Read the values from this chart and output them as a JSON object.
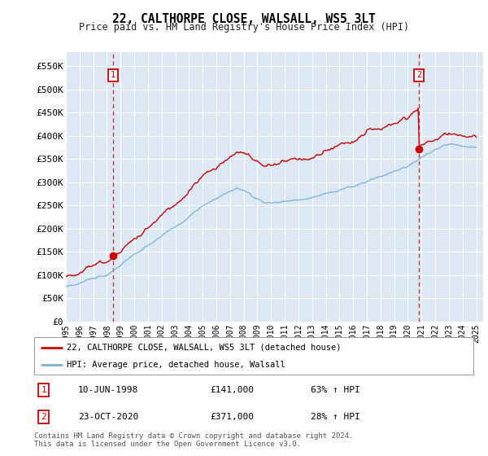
{
  "title": "22, CALTHORPE CLOSE, WALSALL, WS5 3LT",
  "subtitle": "Price paid vs. HM Land Registry's House Price Index (HPI)",
  "ylabel_ticks": [
    "£0",
    "£50K",
    "£100K",
    "£150K",
    "£200K",
    "£250K",
    "£300K",
    "£350K",
    "£400K",
    "£450K",
    "£500K",
    "£550K"
  ],
  "ytick_vals": [
    0,
    50000,
    100000,
    150000,
    200000,
    250000,
    300000,
    350000,
    400000,
    450000,
    500000,
    550000
  ],
  "ylim": [
    0,
    580000
  ],
  "xlim_start": 1995.0,
  "xlim_end": 2025.5,
  "background_color": "#dce9f5",
  "fig_bg_color": "#ffffff",
  "red_line_color": "#cc0000",
  "blue_line_color": "#7bafd4",
  "grid_color": "#ffffff",
  "sale1_x": 1998.44,
  "sale1_y": 141000,
  "sale1_label": "1",
  "sale2_x": 2020.81,
  "sale2_y": 371000,
  "sale2_label": "2",
  "legend_line1": "22, CALTHORPE CLOSE, WALSALL, WS5 3LT (detached house)",
  "legend_line2": "HPI: Average price, detached house, Walsall",
  "note1_label": "1",
  "note1_date": "10-JUN-1998",
  "note1_price": "£141,000",
  "note1_hpi": "63% ↑ HPI",
  "note2_label": "2",
  "note2_date": "23-OCT-2020",
  "note2_price": "£371,000",
  "note2_hpi": "28% ↑ HPI",
  "copyright": "Contains HM Land Registry data © Crown copyright and database right 2024.\nThis data is licensed under the Open Government Licence v3.0.",
  "xtick_labels": [
    "1995",
    "1996",
    "1997",
    "1998",
    "1999",
    "2000",
    "2001",
    "2002",
    "2003",
    "2004",
    "2005",
    "2006",
    "2007",
    "2008",
    "2009",
    "2010",
    "2011",
    "2012",
    "2013",
    "2014",
    "2015",
    "2016",
    "2017",
    "2018",
    "2019",
    "2020",
    "2021",
    "2022",
    "2023",
    "2024",
    "2025"
  ],
  "xtick_vals": [
    1995,
    1996,
    1997,
    1998,
    1999,
    2000,
    2001,
    2002,
    2003,
    2004,
    2005,
    2006,
    2007,
    2008,
    2009,
    2010,
    2011,
    2012,
    2013,
    2014,
    2015,
    2016,
    2017,
    2018,
    2019,
    2020,
    2021,
    2022,
    2023,
    2024,
    2025
  ]
}
